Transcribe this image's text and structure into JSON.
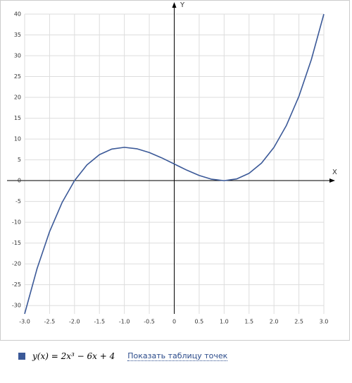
{
  "chart_data": {
    "type": "line",
    "x_label": "X",
    "y_label": "Y",
    "xlim": [
      -3,
      3
    ],
    "ylim": [
      -32,
      40
    ],
    "xticks": [
      {
        "value": -3,
        "label": "-3.0"
      },
      -2.5,
      {
        "value": -2,
        "label": "-2.0"
      },
      -1.5,
      {
        "value": -1,
        "label": "-1.0"
      },
      -0.5,
      0,
      0.5,
      {
        "value": 1,
        "label": "1.0"
      },
      1.5,
      {
        "value": 2,
        "label": "2.0"
      },
      2.5,
      {
        "value": 3,
        "label": "3.0"
      }
    ],
    "yticks": [
      -30,
      -25,
      -20,
      -15,
      -10,
      -5,
      0,
      5,
      10,
      15,
      20,
      25,
      30,
      35,
      40
    ],
    "grid": true,
    "x": [
      -3,
      -2.75,
      -2.5,
      -2.25,
      -2,
      -1.75,
      -1.5,
      -1.25,
      -1,
      -0.75,
      -0.5,
      -0.25,
      0,
      0.25,
      0.5,
      0.75,
      1,
      1.25,
      1.5,
      1.75,
      2,
      2.25,
      2.5,
      2.75,
      3
    ],
    "series": [
      {
        "name": "y(x) = 2x³ − 6x + 4",
        "color": "#3b5998",
        "values": [
          -32,
          -21.09375,
          -12.25,
          -5.28125,
          0,
          3.78125,
          6.25,
          7.59375,
          8,
          7.65625,
          6.75,
          5.46875,
          4,
          2.53125,
          1.25,
          0.34375,
          0,
          0.40625,
          1.75,
          4.21875,
          8,
          13.28125,
          20.25,
          29.09375,
          40
        ]
      }
    ],
    "link": "Показать таблицу точек"
  }
}
